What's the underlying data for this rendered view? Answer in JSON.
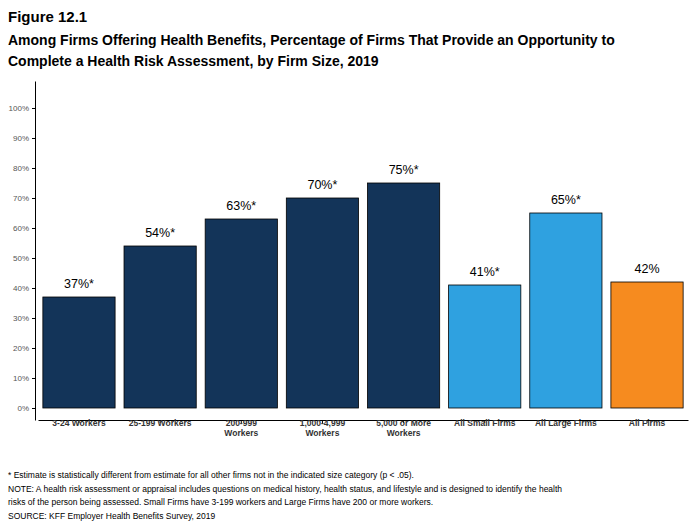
{
  "chart_data": {
    "type": "bar",
    "title": "Figure 12.1",
    "subtitle": "Among Firms Offering Health Benefits, Percentage of Firms That Provide an Opportunity to Complete a Health Risk Assessment, by Firm Size, 2019",
    "categories": [
      "3-24 Workers",
      "25-199 Workers",
      "200-999 Workers",
      "1,000-4,999 Workers",
      "5,000 or More Workers",
      "All Small Firms",
      "All Large Firms",
      "All Firms"
    ],
    "values": [
      37,
      54,
      63,
      70,
      75,
      41,
      65,
      42
    ],
    "value_labels": [
      "37%*",
      "54%*",
      "63%*",
      "70%*",
      "75%*",
      "41%*",
      "65%*",
      "42%"
    ],
    "colors": [
      "#133459",
      "#133459",
      "#133459",
      "#133459",
      "#133459",
      "#2fa1e0",
      "#2fa1e0",
      "#f68b1f"
    ],
    "data_labels": true,
    "grid": false,
    "ylim": [
      -4,
      109
    ],
    "yticks": [
      {
        "value": 0,
        "label": "0%"
      },
      {
        "value": 10,
        "label": "10%"
      },
      {
        "value": 20,
        "label": "20%"
      },
      {
        "value": 30,
        "label": "30%"
      },
      {
        "value": 40,
        "label": "40%"
      },
      {
        "value": 50,
        "label": "50%"
      },
      {
        "value": 60,
        "label": "60%"
      },
      {
        "value": 70,
        "label": "70%"
      },
      {
        "value": 80,
        "label": "80%"
      },
      {
        "value": 90,
        "label": "90%"
      },
      {
        "value": 100,
        "label": "100%"
      }
    ],
    "annotations": [
      "* Estimate is statistically different from estimate for all other firms not in the indicated size category (p < .05).",
      "NOTE: A health risk assessment or appraisal includes questions on medical history, health status, and lifestyle and is designed to identify the health risks of the person being assessed. Small Firms have 3-199 workers and Large Firms have 200 or more workers.",
      "SOURCE: KFF Employer Health Benefits Survey, 2019"
    ]
  }
}
